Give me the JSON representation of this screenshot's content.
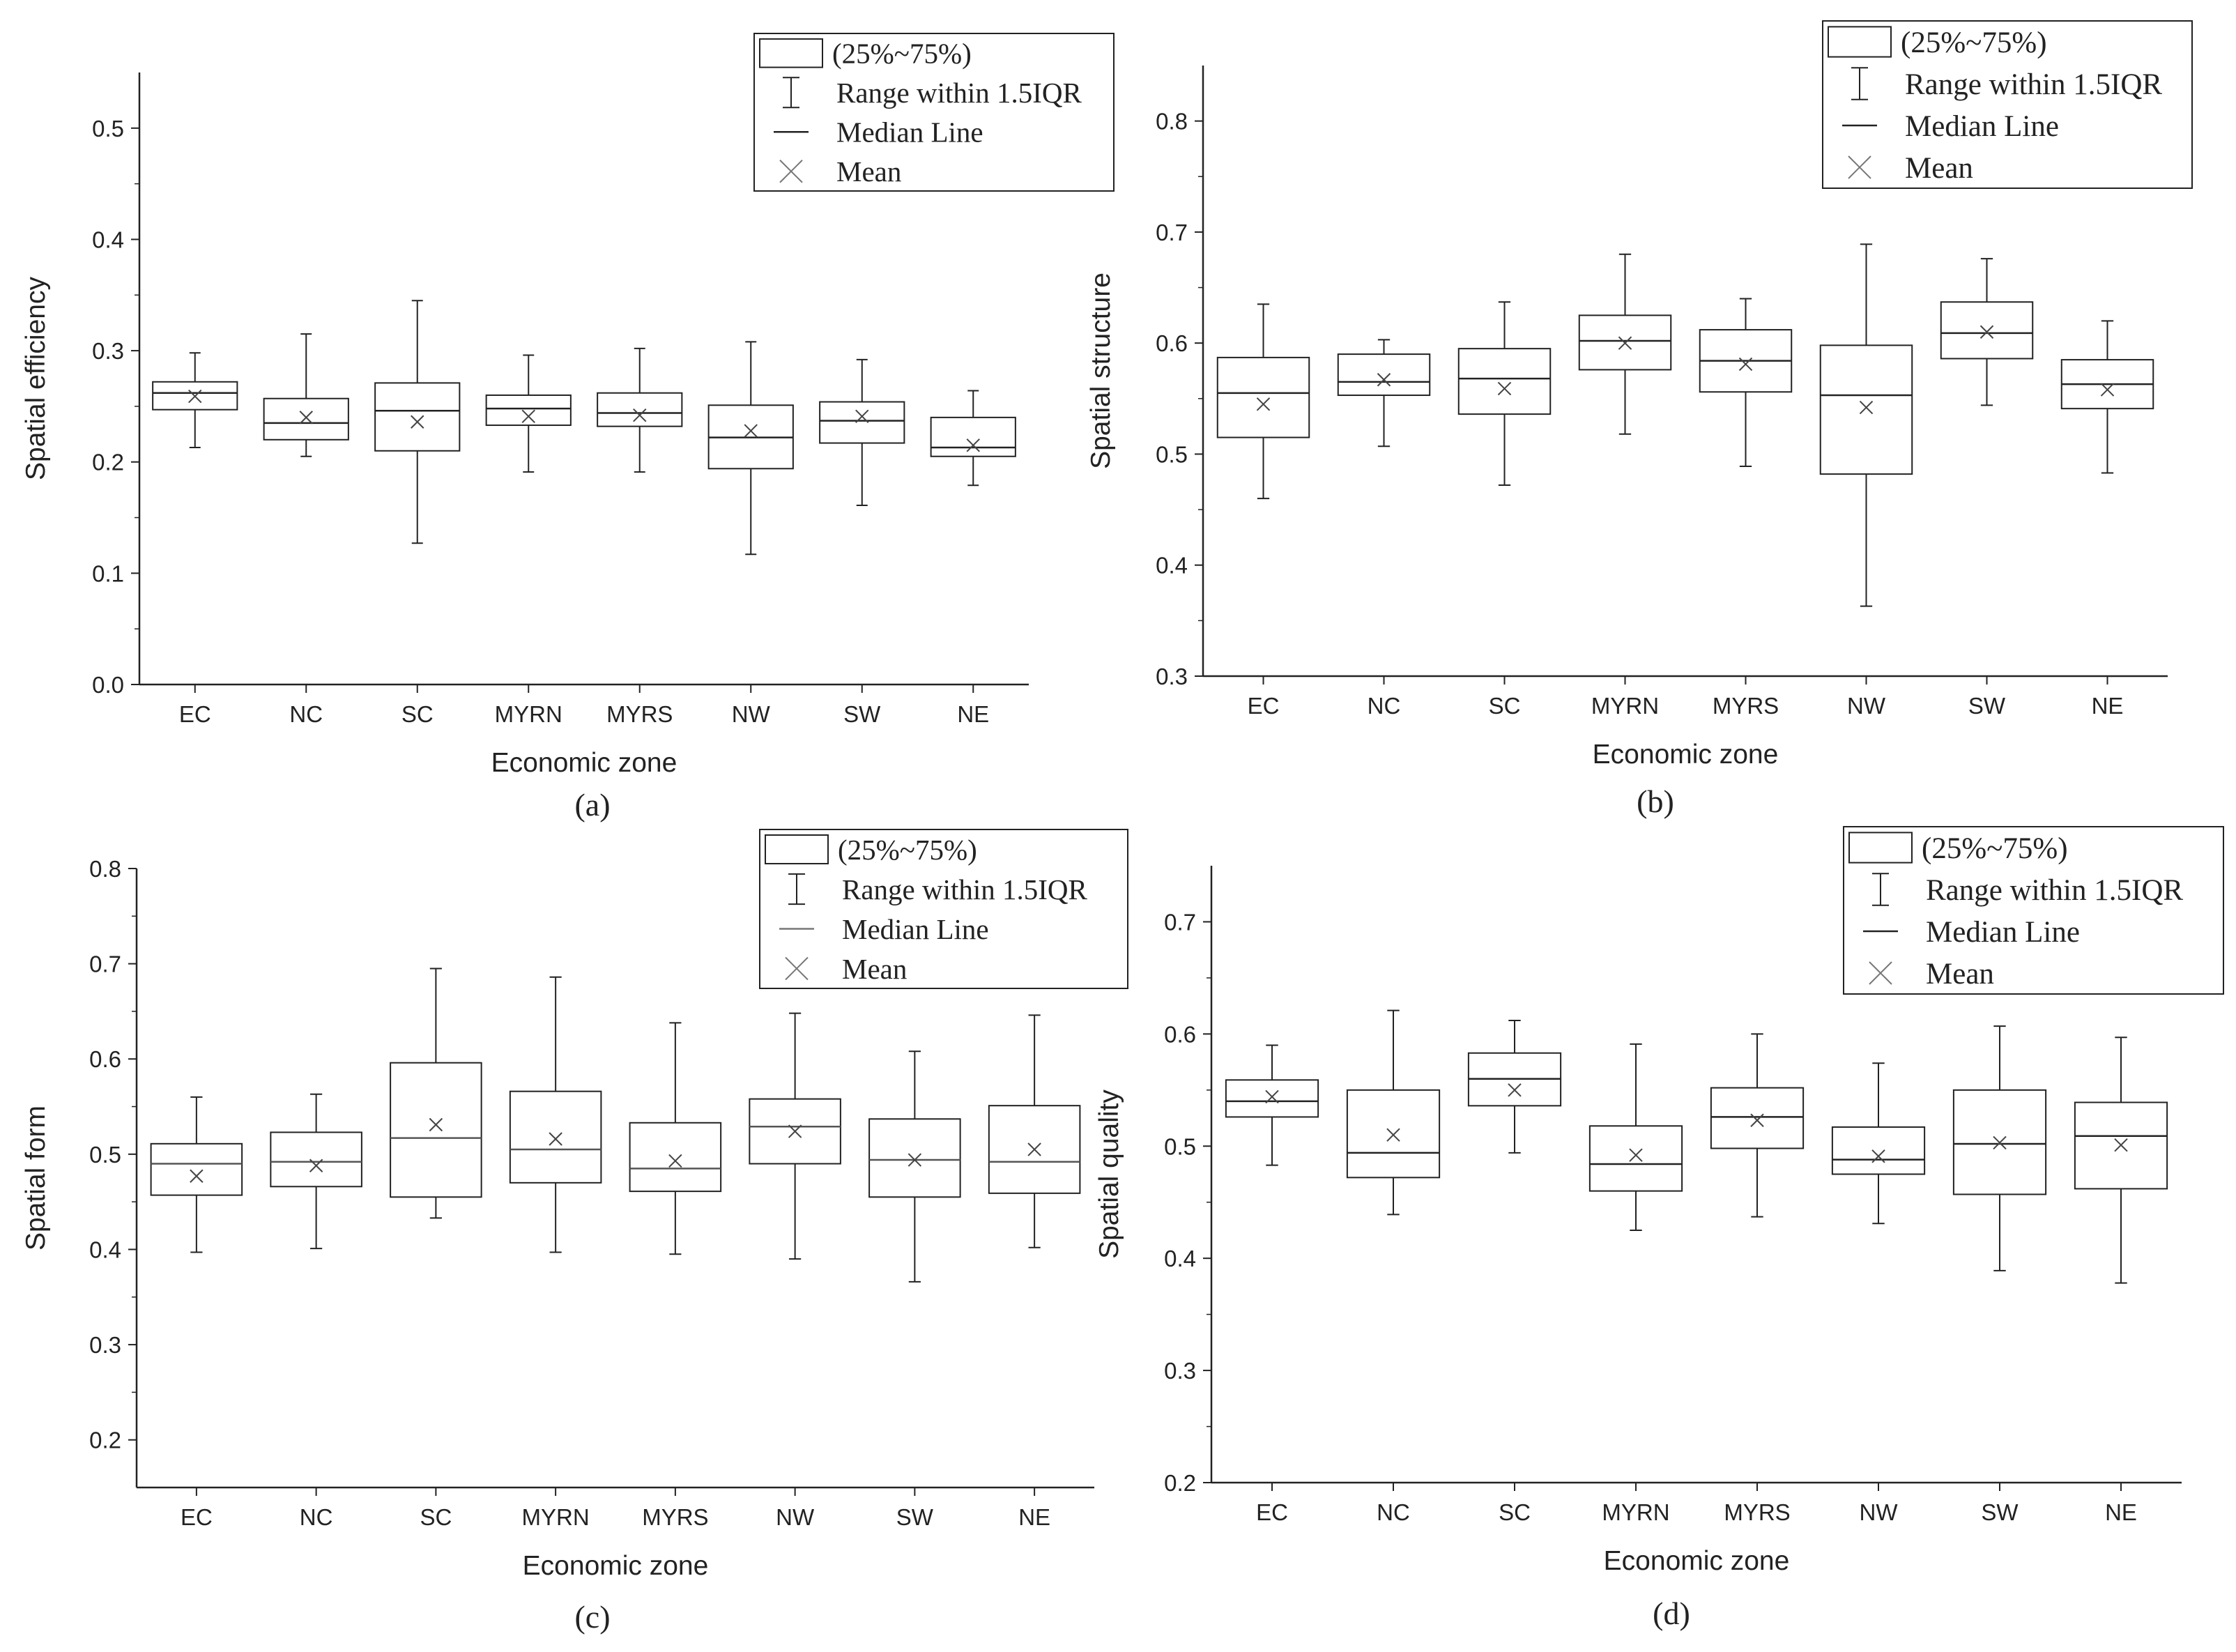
{
  "legend": {
    "box_label": "(25%~75%)",
    "whisker_label": "Range within 1.5IQR",
    "median_label": "Median Line",
    "mean_label": "Mean"
  },
  "chart_data": [
    {
      "type": "box",
      "panel": "(a)",
      "xlabel": "Economic zone",
      "ylabel": "Spatial efficiency",
      "ylim": [
        0.0,
        0.55
      ],
      "yticks": [
        0.0,
        0.1,
        0.2,
        0.3,
        0.4,
        0.5
      ],
      "ytick_labels": [
        "0.0",
        "0.1",
        "0.2",
        "0.3",
        "0.4",
        "0.5"
      ],
      "categories": [
        "EC",
        "NC",
        "SC",
        "MYRN",
        "MYRS",
        "NW",
        "SW",
        "NE"
      ],
      "boxes": [
        {
          "whisker_low": 0.213,
          "q1": 0.247,
          "median": 0.262,
          "q3": 0.272,
          "whisker_high": 0.298,
          "mean": 0.259
        },
        {
          "whisker_low": 0.205,
          "q1": 0.22,
          "median": 0.235,
          "q3": 0.257,
          "whisker_high": 0.315,
          "mean": 0.24
        },
        {
          "whisker_low": 0.127,
          "q1": 0.21,
          "median": 0.246,
          "q3": 0.271,
          "whisker_high": 0.345,
          "mean": 0.236
        },
        {
          "whisker_low": 0.191,
          "q1": 0.233,
          "median": 0.248,
          "q3": 0.26,
          "whisker_high": 0.296,
          "mean": 0.241
        },
        {
          "whisker_low": 0.191,
          "q1": 0.232,
          "median": 0.244,
          "q3": 0.262,
          "whisker_high": 0.302,
          "mean": 0.242
        },
        {
          "whisker_low": 0.117,
          "q1": 0.194,
          "median": 0.222,
          "q3": 0.251,
          "whisker_high": 0.308,
          "mean": 0.228
        },
        {
          "whisker_low": 0.161,
          "q1": 0.217,
          "median": 0.237,
          "q3": 0.254,
          "whisker_high": 0.292,
          "mean": 0.241
        },
        {
          "whisker_low": 0.179,
          "q1": 0.205,
          "median": 0.213,
          "q3": 0.24,
          "whisker_high": 0.264,
          "mean": 0.215
        }
      ]
    },
    {
      "type": "box",
      "panel": "(b)",
      "xlabel": "Economic zone",
      "ylabel": "Spatial structure",
      "ylim": [
        0.3,
        0.85
      ],
      "yticks": [
        0.3,
        0.4,
        0.5,
        0.6,
        0.7,
        0.8
      ],
      "ytick_labels": [
        "0.3",
        "0.4",
        "0.5",
        "0.6",
        "0.7",
        "0.8"
      ],
      "categories": [
        "EC",
        "NC",
        "SC",
        "MYRN",
        "MYRS",
        "NW",
        "SW",
        "NE"
      ],
      "boxes": [
        {
          "whisker_low": 0.46,
          "q1": 0.515,
          "median": 0.555,
          "q3": 0.587,
          "whisker_high": 0.635,
          "mean": 0.545
        },
        {
          "whisker_low": 0.507,
          "q1": 0.553,
          "median": 0.565,
          "q3": 0.59,
          "whisker_high": 0.603,
          "mean": 0.567
        },
        {
          "whisker_low": 0.472,
          "q1": 0.536,
          "median": 0.568,
          "q3": 0.595,
          "whisker_high": 0.637,
          "mean": 0.559
        },
        {
          "whisker_low": 0.518,
          "q1": 0.576,
          "median": 0.602,
          "q3": 0.625,
          "whisker_high": 0.68,
          "mean": 0.6
        },
        {
          "whisker_low": 0.489,
          "q1": 0.556,
          "median": 0.584,
          "q3": 0.612,
          "whisker_high": 0.64,
          "mean": 0.581
        },
        {
          "whisker_low": 0.363,
          "q1": 0.482,
          "median": 0.553,
          "q3": 0.598,
          "whisker_high": 0.689,
          "mean": 0.542
        },
        {
          "whisker_low": 0.544,
          "q1": 0.586,
          "median": 0.609,
          "q3": 0.637,
          "whisker_high": 0.676,
          "mean": 0.61
        },
        {
          "whisker_low": 0.483,
          "q1": 0.541,
          "median": 0.563,
          "q3": 0.585,
          "whisker_high": 0.62,
          "mean": 0.558
        }
      ]
    },
    {
      "type": "box",
      "panel": "(c)",
      "xlabel": "Economic zone",
      "ylabel": "Spatial form",
      "ylim": [
        0.15,
        0.8
      ],
      "yticks": [
        0.2,
        0.3,
        0.4,
        0.5,
        0.6,
        0.7,
        0.8
      ],
      "ytick_labels": [
        "0.2",
        "0.3",
        "0.4",
        "0.5",
        "0.6",
        "0.7",
        "0.8"
      ],
      "categories": [
        "EC",
        "NC",
        "SC",
        "MYRN",
        "MYRS",
        "NW",
        "SW",
        "NE"
      ],
      "boxes": [
        {
          "whisker_low": 0.397,
          "q1": 0.457,
          "median": 0.49,
          "q3": 0.511,
          "whisker_high": 0.56,
          "mean": 0.477
        },
        {
          "whisker_low": 0.401,
          "q1": 0.466,
          "median": 0.492,
          "q3": 0.523,
          "whisker_high": 0.563,
          "mean": 0.488
        },
        {
          "whisker_low": 0.433,
          "q1": 0.455,
          "median": 0.517,
          "q3": 0.596,
          "whisker_high": 0.695,
          "mean": 0.531
        },
        {
          "whisker_low": 0.397,
          "q1": 0.47,
          "median": 0.505,
          "q3": 0.566,
          "whisker_high": 0.686,
          "mean": 0.516
        },
        {
          "whisker_low": 0.395,
          "q1": 0.461,
          "median": 0.485,
          "q3": 0.533,
          "whisker_high": 0.638,
          "mean": 0.493
        },
        {
          "whisker_low": 0.39,
          "q1": 0.49,
          "median": 0.529,
          "q3": 0.558,
          "whisker_high": 0.648,
          "mean": 0.524
        },
        {
          "whisker_low": 0.366,
          "q1": 0.455,
          "median": 0.494,
          "q3": 0.537,
          "whisker_high": 0.608,
          "mean": 0.494
        },
        {
          "whisker_low": 0.402,
          "q1": 0.459,
          "median": 0.492,
          "q3": 0.551,
          "whisker_high": 0.646,
          "mean": 0.505
        }
      ]
    },
    {
      "type": "box",
      "panel": "(d)",
      "xlabel": "Economic zone",
      "ylabel": "Spatial quality",
      "ylim": [
        0.2,
        0.75
      ],
      "yticks": [
        0.2,
        0.3,
        0.4,
        0.5,
        0.6,
        0.7
      ],
      "ytick_labels": [
        "0.2",
        "0.3",
        "0.4",
        "0.5",
        "0.6",
        "0.7"
      ],
      "categories": [
        "EC",
        "NC",
        "SC",
        "MYRN",
        "MYRS",
        "NW",
        "SW",
        "NE"
      ],
      "boxes": [
        {
          "whisker_low": 0.483,
          "q1": 0.526,
          "median": 0.54,
          "q3": 0.559,
          "whisker_high": 0.59,
          "mean": 0.544
        },
        {
          "whisker_low": 0.439,
          "q1": 0.472,
          "median": 0.494,
          "q3": 0.55,
          "whisker_high": 0.621,
          "mean": 0.51
        },
        {
          "whisker_low": 0.494,
          "q1": 0.536,
          "median": 0.56,
          "q3": 0.583,
          "whisker_high": 0.612,
          "mean": 0.55
        },
        {
          "whisker_low": 0.425,
          "q1": 0.46,
          "median": 0.484,
          "q3": 0.518,
          "whisker_high": 0.591,
          "mean": 0.492
        },
        {
          "whisker_low": 0.437,
          "q1": 0.498,
          "median": 0.526,
          "q3": 0.552,
          "whisker_high": 0.6,
          "mean": 0.523
        },
        {
          "whisker_low": 0.431,
          "q1": 0.475,
          "median": 0.488,
          "q3": 0.517,
          "whisker_high": 0.574,
          "mean": 0.491
        },
        {
          "whisker_low": 0.389,
          "q1": 0.457,
          "median": 0.502,
          "q3": 0.55,
          "whisker_high": 0.607,
          "mean": 0.503
        },
        {
          "whisker_low": 0.378,
          "q1": 0.462,
          "median": 0.509,
          "q3": 0.539,
          "whisker_high": 0.597,
          "mean": 0.501
        }
      ]
    }
  ]
}
